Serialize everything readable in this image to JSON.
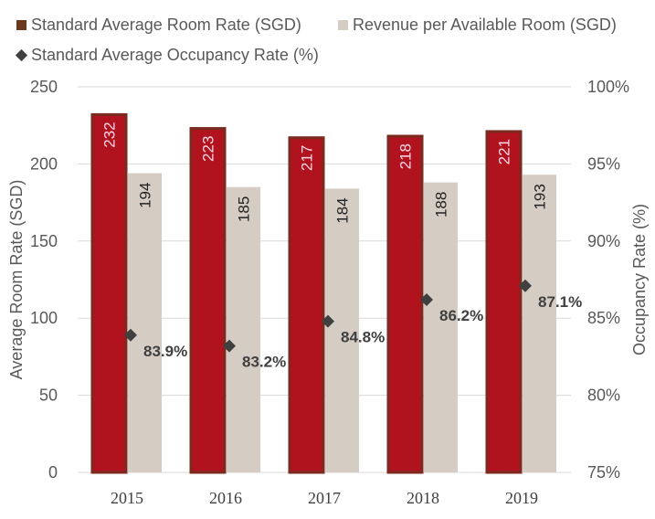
{
  "chart_data": {
    "type": "bar",
    "categories": [
      "2015",
      "2016",
      "2017",
      "2018",
      "2019"
    ],
    "series": [
      {
        "name": "Standard Average Room Rate (SGD)",
        "kind": "bar",
        "axis": "left",
        "color": "#b0121e",
        "border": "#7a2a1e",
        "values": [
          232,
          223,
          217,
          218,
          221
        ]
      },
      {
        "name": "Revenue per Available Room (SGD)",
        "kind": "bar",
        "axis": "left",
        "color": "#d5cdc4",
        "values": [
          194,
          185,
          184,
          188,
          193
        ]
      },
      {
        "name": "Standard Average Occupancy Rate (%)",
        "kind": "scatter",
        "marker": "diamond",
        "axis": "right",
        "color": "#404040",
        "values": [
          83.9,
          83.2,
          84.8,
          86.2,
          87.1
        ]
      }
    ],
    "ylabel": "Average Room Rate (SGD)",
    "y2label": "Occupancy Rate (%)",
    "ylim": [
      0,
      250
    ],
    "y2lim": [
      75,
      100
    ],
    "yticks": [
      "0",
      "50",
      "100",
      "150",
      "200",
      "250"
    ],
    "y2ticks": [
      "75%",
      "80%",
      "85%",
      "90%",
      "95%",
      "100%"
    ],
    "grid": true,
    "legend": "top"
  }
}
